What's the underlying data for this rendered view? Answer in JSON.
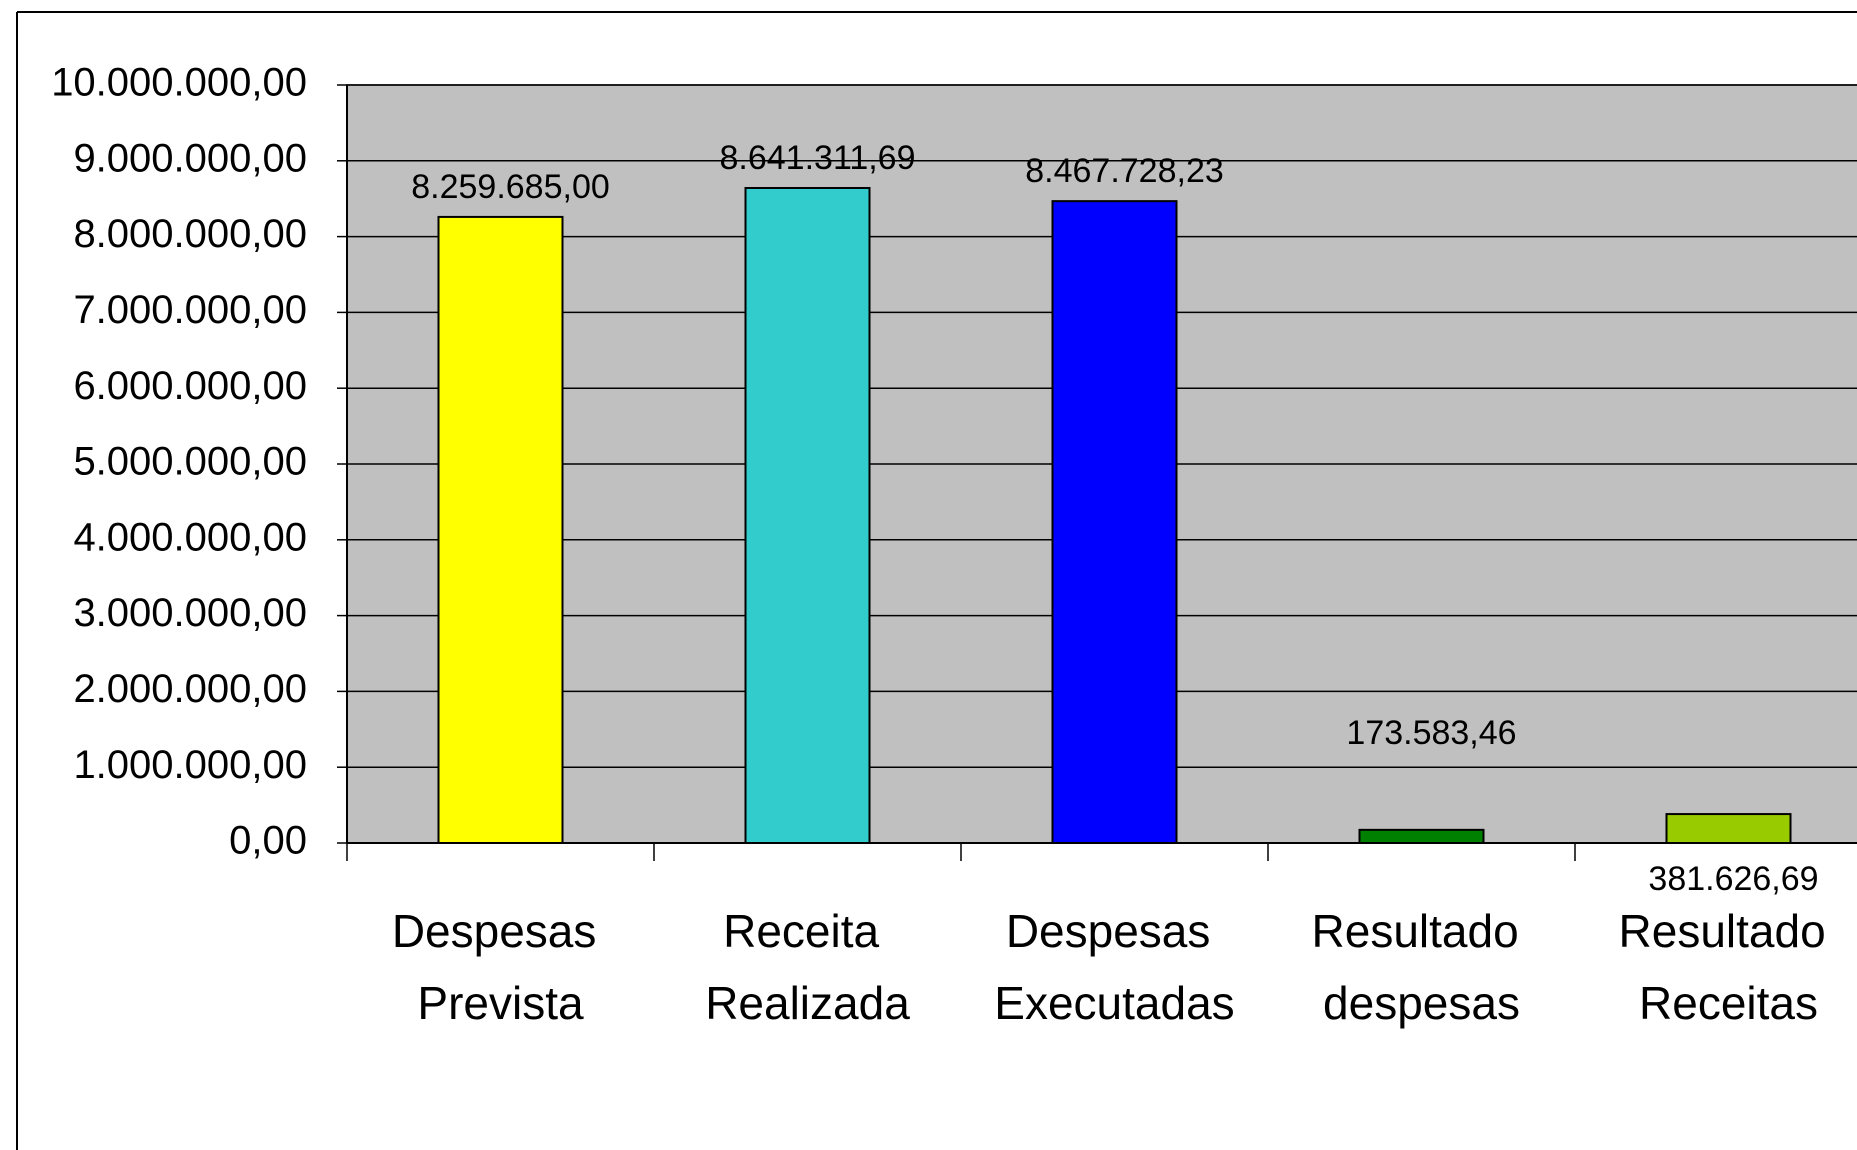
{
  "chart_data": {
    "type": "bar",
    "categories": [
      "Despesas Prevista",
      "Receita Realizada",
      "Despesas Executadas",
      "Resultado despesas",
      "Resultado Receitas"
    ],
    "values": [
      8259685,
      8641311.69,
      8467728.23,
      173583.46,
      381626.69
    ],
    "value_labels": [
      "8.259.685,00",
      "8.641.311,69",
      "8.467.728,23",
      "173.583,46",
      "381.626,69"
    ],
    "colors": [
      "#ffff00",
      "#33cccc",
      "#0000ff",
      "#008000",
      "#99cc00"
    ],
    "ylim": [
      0,
      10000000
    ],
    "yticks": [
      {
        "value": 0,
        "label": "0,00"
      },
      {
        "value": 1000000,
        "label": "1.000.000,00"
      },
      {
        "value": 2000000,
        "label": "2.000.000,00"
      },
      {
        "value": 3000000,
        "label": "3.000.000,00"
      },
      {
        "value": 4000000,
        "label": "4.000.000,00"
      },
      {
        "value": 5000000,
        "label": "5.000.000,00"
      },
      {
        "value": 6000000,
        "label": "6.000.000,00"
      },
      {
        "value": 7000000,
        "label": "7.000.000,00"
      },
      {
        "value": 8000000,
        "label": "8.000.000,00"
      },
      {
        "value": 9000000,
        "label": "9.000.000,00"
      },
      {
        "value": 10000000,
        "label": "10.000.000,00"
      }
    ],
    "grid": true
  }
}
